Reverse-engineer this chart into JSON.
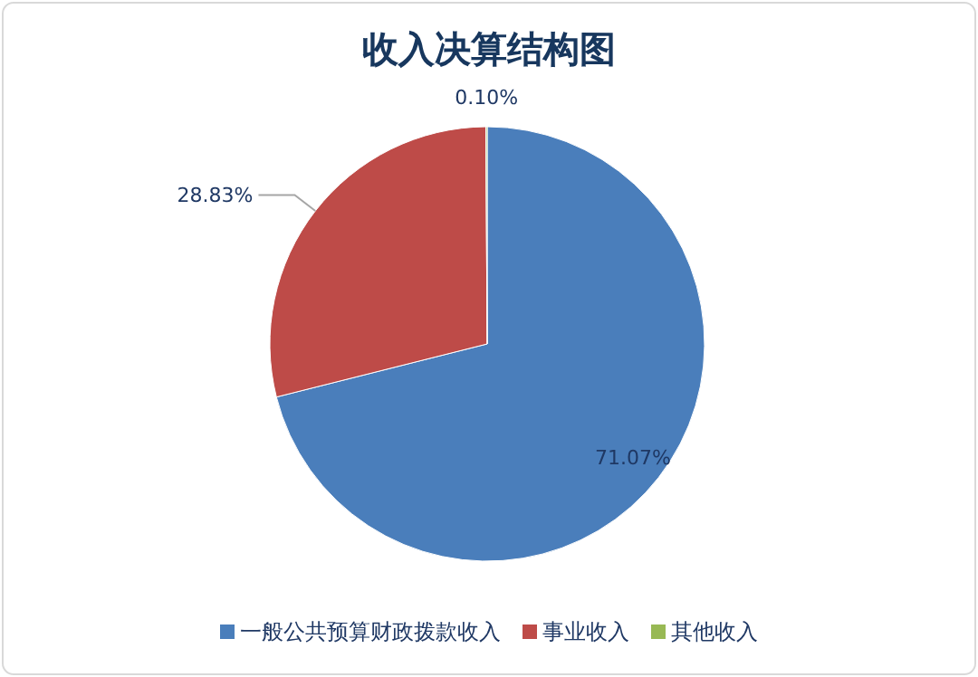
{
  "chart_data": {
    "type": "pie",
    "title": "收入决算结构图",
    "categories": [
      "一般公共预算财政拨款收入",
      "事业收入",
      "其他收入"
    ],
    "values": [
      71.07,
      28.83,
      0.1
    ],
    "value_labels": [
      "71.07%",
      "28.83%",
      "0.10%"
    ],
    "colors": [
      "#4a7ebb",
      "#be4b48",
      "#98b954"
    ],
    "legend": "bottom"
  }
}
